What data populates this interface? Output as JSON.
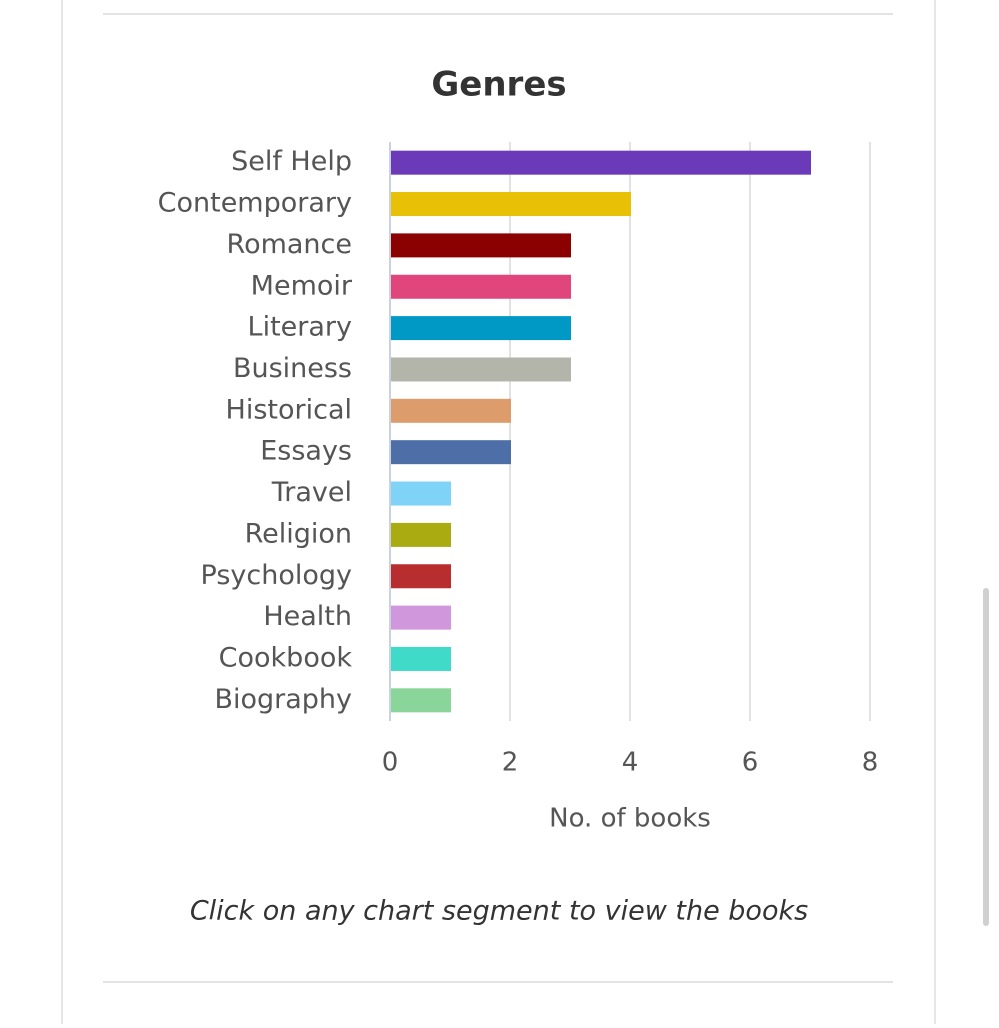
{
  "chart_data": {
    "type": "bar",
    "orientation": "horizontal",
    "title": "Genres",
    "categories": [
      "Self Help",
      "Contemporary",
      "Romance",
      "Memoir",
      "Literary",
      "Business",
      "Historical",
      "Essays",
      "Travel",
      "Religion",
      "Psychology",
      "Health",
      "Cookbook",
      "Biography"
    ],
    "values": [
      7,
      4,
      3,
      3,
      3,
      3,
      2,
      2,
      1,
      1,
      1,
      1,
      1,
      1
    ],
    "colors": [
      "#6a3ab8",
      "#e8c106",
      "#8b0000",
      "#e0457b",
      "#0099c6",
      "#b3b5ab",
      "#dd9c6b",
      "#4e6ea8",
      "#7fd3f7",
      "#aaaa11",
      "#b82e2e",
      "#d197dd",
      "#3fdbc8",
      "#89d59a"
    ],
    "xlabel": "No. of books",
    "xlim": [
      0,
      8
    ],
    "xticks": [
      0,
      2,
      4,
      6,
      8
    ],
    "grid": true
  },
  "note": "Click on any chart segment to view the books"
}
